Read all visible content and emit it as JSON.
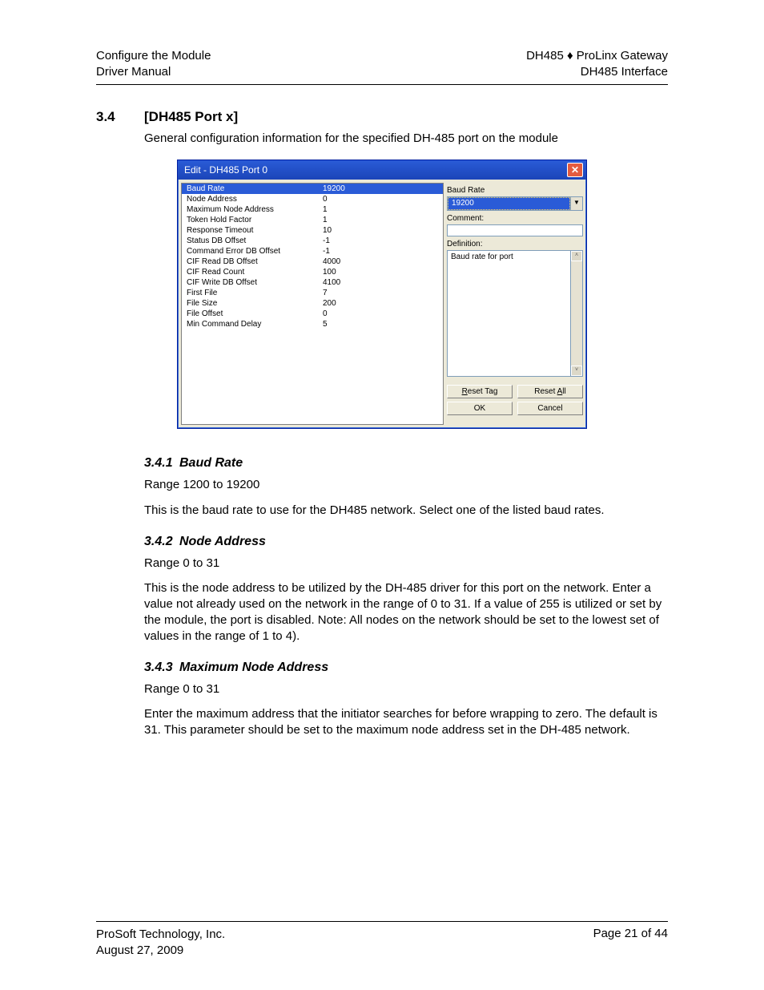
{
  "header": {
    "left_line1": "Configure the Module",
    "left_line2": "Driver Manual",
    "right_line1": "DH485 ♦ ProLinx Gateway",
    "right_line2": "DH485 Interface"
  },
  "section": {
    "number": "3.4",
    "title": "[DH485 Port x]",
    "intro": "General configuration information for the specified DH-485 port on the module"
  },
  "dialog": {
    "title": "Edit - DH485 Port 0",
    "params": [
      {
        "name": "Baud Rate",
        "value": "19200",
        "selected": true
      },
      {
        "name": "Node Address",
        "value": "0"
      },
      {
        "name": "Maximum Node Address",
        "value": "1"
      },
      {
        "name": "Token Hold Factor",
        "value": "1"
      },
      {
        "name": "Response Timeout",
        "value": "10"
      },
      {
        "name": "Status DB Offset",
        "value": "-1"
      },
      {
        "name": "Command Error DB Offset",
        "value": "-1"
      },
      {
        "name": "CIF Read DB Offset",
        "value": "4000"
      },
      {
        "name": "CIF Read Count",
        "value": "100"
      },
      {
        "name": "CIF Write DB Offset",
        "value": "4100"
      },
      {
        "name": "First File",
        "value": "7"
      },
      {
        "name": "File Size",
        "value": "200"
      },
      {
        "name": "File Offset",
        "value": "0"
      },
      {
        "name": "Min Command Delay",
        "value": "5"
      }
    ],
    "right": {
      "field_label": "Baud Rate",
      "combo_value": "19200",
      "comment_label": "Comment:",
      "comment_value": "",
      "definition_label": "Definition:",
      "definition_text": "Baud rate for port"
    },
    "buttons": {
      "reset_tag": "Reset Tag",
      "reset_all": "Reset All",
      "ok": "OK",
      "cancel": "Cancel"
    }
  },
  "subsections": [
    {
      "number": "3.4.1",
      "title": "Baud Rate",
      "paragraphs": [
        "Range 1200 to 19200",
        "This is the baud rate to use for the DH485 network. Select one of the listed baud rates."
      ]
    },
    {
      "number": "3.4.2",
      "title": "Node Address",
      "paragraphs": [
        "Range 0 to 31",
        "This is the node address to be utilized by the DH-485 driver for this port on the network. Enter a value not already used on the network in the range of 0 to 31. If a value of 255 is utilized or set by the module, the port is disabled. Note: All nodes on the network should be set to the lowest set of values in the range of 1 to 4)."
      ]
    },
    {
      "number": "3.4.3",
      "title": "Maximum Node Address",
      "paragraphs": [
        "Range 0 to 31",
        "Enter the maximum address that the initiator searches for before wrapping to zero. The default is 31. This parameter should be set to the maximum node address set in the DH-485 network."
      ]
    }
  ],
  "footer": {
    "company": "ProSoft Technology, Inc.",
    "date": "August 27, 2009",
    "page": "Page 21 of 44"
  }
}
